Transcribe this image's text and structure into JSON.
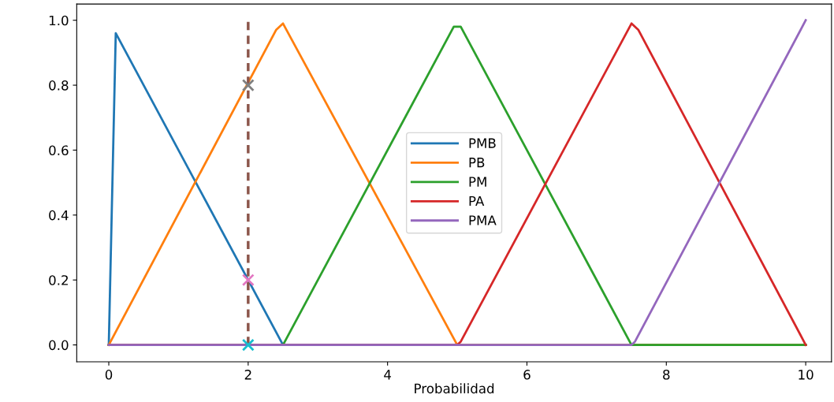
{
  "chart_data": {
    "type": "line",
    "xlabel": "Probabilidad",
    "xlim": [
      -0.46,
      10.37
    ],
    "ylim": [
      -0.052,
      1.05
    ],
    "xticks": [
      0,
      2,
      4,
      6,
      8,
      10
    ],
    "yticks": [
      {
        "value": 0,
        "label": "0.0"
      },
      {
        "value": 0.2,
        "label": "0.2"
      },
      {
        "value": 0.4,
        "label": "0.4"
      },
      {
        "value": 0.6,
        "label": "0.6"
      },
      {
        "value": 0.8,
        "label": "0.8"
      },
      {
        "value": 1,
        "label": "1.0"
      }
    ],
    "grid": false,
    "legend": "center",
    "series": [
      {
        "name": "PMB",
        "color": "#1f77b4",
        "x": [
          0,
          0.1,
          2.5,
          10
        ],
        "values": [
          0,
          0.96,
          0,
          0
        ]
      },
      {
        "name": "PB",
        "color": "#ff7f0e",
        "x": [
          0,
          2.4,
          2.5,
          5,
          10
        ],
        "values": [
          0,
          0.97,
          0.99,
          0,
          0
        ]
      },
      {
        "name": "PM",
        "color": "#2ca02c",
        "x": [
          0,
          2.5,
          4.95,
          5.05,
          7.5,
          7.6,
          10
        ],
        "values": [
          0,
          0,
          0.98,
          0.98,
          0,
          0,
          0
        ]
      },
      {
        "name": "PA",
        "color": "#d62728",
        "x": [
          0,
          5,
          5.05,
          7.5,
          7.6,
          10
        ],
        "values": [
          0,
          0,
          0.01,
          0.99,
          0.97,
          0
        ]
      },
      {
        "name": "PMA",
        "color": "#9467bd",
        "x": [
          0,
          7.5,
          7.55,
          10
        ],
        "values": [
          0,
          0,
          0.01,
          1.0
        ]
      },
      {
        "type": "line",
        "line_style": "dashed",
        "color": "#8c564b",
        "x": [
          2,
          2
        ],
        "values": [
          0,
          1.0
        ]
      },
      {
        "type": "scatter",
        "marker": "cross",
        "color": "#7f7f7f",
        "x": [
          2
        ],
        "values": [
          0.8
        ]
      },
      {
        "type": "scatter",
        "marker": "cross",
        "color": "#e377c2",
        "x": [
          2
        ],
        "values": [
          0.2
        ]
      },
      {
        "type": "scatter",
        "marker": "cross",
        "color": "#17becf",
        "x": [
          2
        ],
        "values": [
          0
        ]
      }
    ]
  }
}
